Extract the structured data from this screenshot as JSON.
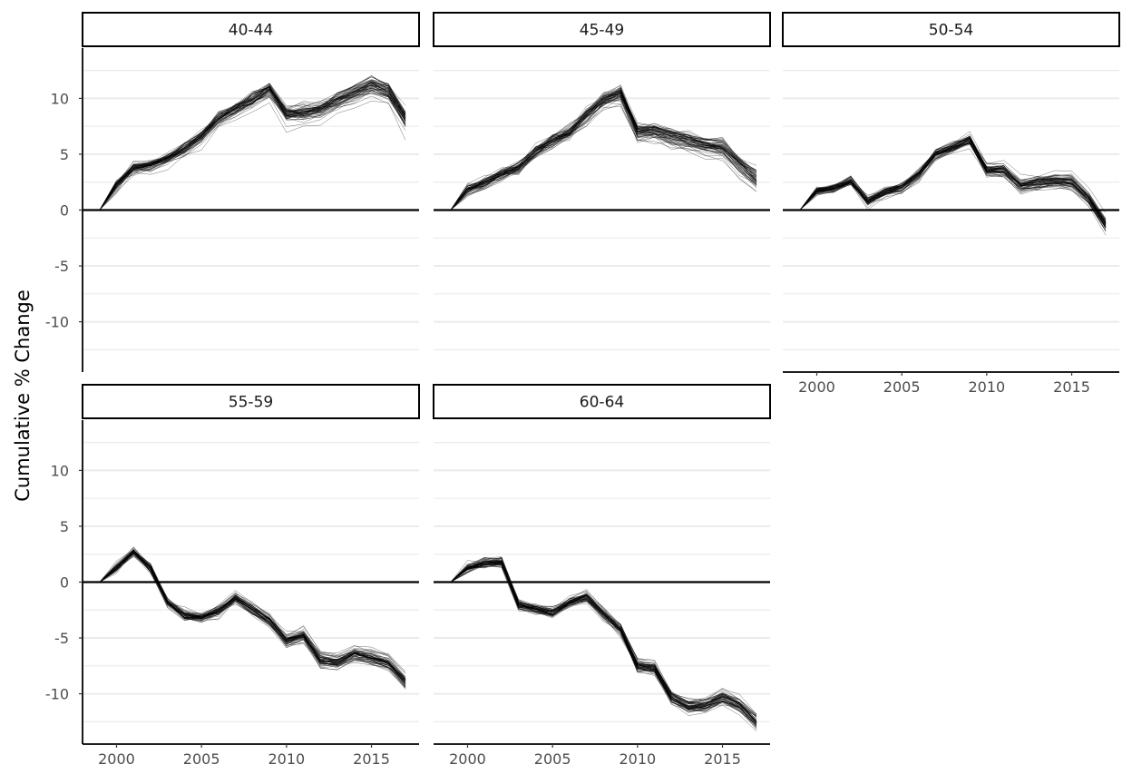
{
  "chart_data": {
    "type": "line",
    "ylabel": "Cumulative % Change",
    "xlabel": "",
    "xlim": [
      1998,
      2017.8
    ],
    "ylim": [
      -14.5,
      14.5
    ],
    "x_ticks": [
      2000,
      2005,
      2010,
      2015
    ],
    "y_ticks": [
      -10,
      -5,
      0,
      5,
      10
    ],
    "grid": "horizontal",
    "reference_line": 0,
    "x": [
      1999,
      2000,
      2001,
      2002,
      2003,
      2004,
      2005,
      2006,
      2007,
      2008,
      2009,
      2010,
      2011,
      2012,
      2013,
      2014,
      2015,
      2016,
      2017
    ],
    "n_lines_per_panel": 60,
    "facets": [
      {
        "label": "40-44",
        "median": [
          0,
          2.2,
          3.8,
          4.0,
          4.6,
          5.5,
          6.6,
          8.2,
          9.0,
          9.8,
          10.8,
          8.6,
          8.7,
          9.0,
          9.8,
          10.5,
          11.2,
          10.6,
          8.2
        ],
        "spread": 0.8
      },
      {
        "label": "45-49",
        "median": [
          0,
          1.8,
          2.4,
          3.2,
          3.8,
          5.2,
          6.2,
          7.0,
          8.5,
          9.8,
          10.5,
          7.0,
          7.0,
          6.6,
          6.2,
          5.8,
          5.6,
          4.0,
          2.8
        ],
        "spread": 0.8
      },
      {
        "label": "50-54",
        "median": [
          0,
          1.7,
          2.0,
          2.6,
          0.8,
          1.6,
          2.0,
          3.2,
          5.0,
          5.6,
          6.3,
          3.6,
          3.6,
          2.2,
          2.5,
          2.6,
          2.5,
          1.0,
          -1.3
        ],
        "spread": 0.6
      },
      {
        "label": "55-59",
        "median": [
          0,
          1.3,
          2.7,
          1.2,
          -1.8,
          -3.0,
          -3.2,
          -2.6,
          -1.5,
          -2.5,
          -3.5,
          -5.3,
          -4.8,
          -7.0,
          -7.2,
          -6.5,
          -6.8,
          -7.3,
          -9.0
        ],
        "spread": 0.6
      },
      {
        "label": "60-64",
        "median": [
          0,
          1.3,
          1.7,
          1.8,
          -2.0,
          -2.4,
          -2.7,
          -1.8,
          -1.3,
          -2.8,
          -4.2,
          -7.5,
          -7.7,
          -10.3,
          -11.1,
          -11.0,
          -10.3,
          -11.0,
          -12.5
        ],
        "spread": 0.6
      }
    ]
  }
}
